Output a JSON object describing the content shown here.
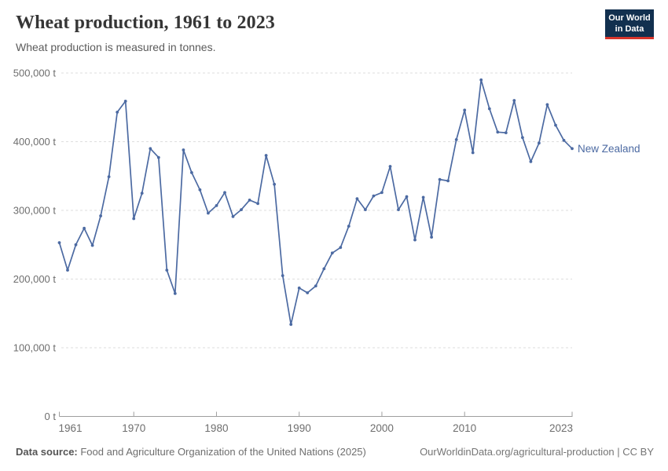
{
  "header": {
    "title": "Wheat production, 1961 to 2023",
    "subtitle": "Wheat production is measured in tonnes.",
    "logo": {
      "line1": "Our World",
      "line2": "in Data"
    }
  },
  "chart_data": {
    "type": "line",
    "title": "Wheat production, 1961 to 2023",
    "unit": "tonnes",
    "xlim": [
      1961,
      2023
    ],
    "ylim": [
      0,
      500000
    ],
    "grid": "horizontal-dashed",
    "legend_position": "end-of-line-label",
    "line_color": "#4C6AA2",
    "label_color": "#6e6e6e",
    "grid_color": "#dedede",
    "axis_color": "#9e9e9e",
    "y_ticks": [
      {
        "value": 0,
        "label": "0 t"
      },
      {
        "value": 100000,
        "label": "100,000 t"
      },
      {
        "value": 200000,
        "label": "200,000 t"
      },
      {
        "value": 300000,
        "label": "300,000 t"
      },
      {
        "value": 400000,
        "label": "400,000 t"
      },
      {
        "value": 500000,
        "label": "500,000 t"
      }
    ],
    "x_ticks": [
      {
        "year": 1961,
        "label": "1961"
      },
      {
        "year": 1970,
        "label": "1970"
      },
      {
        "year": 1980,
        "label": "1980"
      },
      {
        "year": 1990,
        "label": "1990"
      },
      {
        "year": 2000,
        "label": "2000"
      },
      {
        "year": 2010,
        "label": "2010"
      },
      {
        "year": 2023,
        "label": "2023"
      }
    ],
    "series": [
      {
        "name": "New Zealand",
        "color": "#4C6AA2",
        "years": [
          1961,
          1962,
          1963,
          1964,
          1965,
          1966,
          1967,
          1968,
          1969,
          1970,
          1971,
          1972,
          1973,
          1974,
          1975,
          1976,
          1977,
          1978,
          1979,
          1980,
          1981,
          1982,
          1983,
          1984,
          1985,
          1986,
          1987,
          1988,
          1989,
          1990,
          1991,
          1992,
          1993,
          1994,
          1995,
          1996,
          1997,
          1998,
          1999,
          2000,
          2001,
          2002,
          2003,
          2004,
          2005,
          2006,
          2007,
          2008,
          2009,
          2010,
          2011,
          2012,
          2013,
          2014,
          2015,
          2016,
          2017,
          2018,
          2019,
          2020,
          2021,
          2022,
          2023
        ],
        "values": [
          253000,
          213000,
          250000,
          274000,
          249000,
          292000,
          349000,
          443000,
          459000,
          288000,
          325000,
          390000,
          377000,
          213000,
          179000,
          388000,
          355000,
          330000,
          296000,
          307000,
          326000,
          291000,
          301000,
          315000,
          310000,
          380000,
          338000,
          205000,
          134000,
          187000,
          180000,
          190000,
          215000,
          238000,
          246000,
          277000,
          317000,
          301000,
          321000,
          326000,
          364000,
          301000,
          320000,
          257000,
          319000,
          261000,
          345000,
          343000,
          403000,
          446000,
          384000,
          490000,
          448000,
          414000,
          413000,
          460000,
          406000,
          371000,
          398000,
          454000,
          424000,
          402000,
          390000
        ]
      }
    ]
  },
  "footer": {
    "source_label": "Data source:",
    "source_text": " Food and Agriculture Organization of the United Nations (2025)",
    "credit": "OurWorldinData.org/agricultural-production | CC BY"
  }
}
